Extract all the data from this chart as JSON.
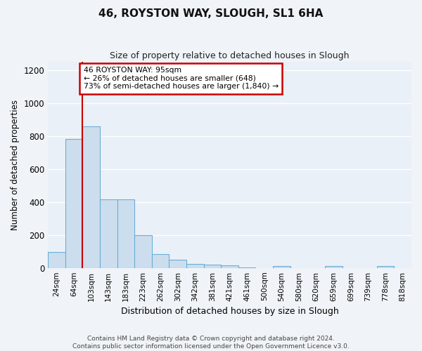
{
  "title": "46, ROYSTON WAY, SLOUGH, SL1 6HA",
  "subtitle": "Size of property relative to detached houses in Slough",
  "xlabel": "Distribution of detached houses by size in Slough",
  "ylabel": "Number of detached properties",
  "bar_labels": [
    "24sqm",
    "64sqm",
    "103sqm",
    "143sqm",
    "183sqm",
    "223sqm",
    "262sqm",
    "302sqm",
    "342sqm",
    "381sqm",
    "421sqm",
    "461sqm",
    "500sqm",
    "540sqm",
    "580sqm",
    "620sqm",
    "659sqm",
    "699sqm",
    "739sqm",
    "778sqm",
    "818sqm"
  ],
  "bar_values": [
    95,
    780,
    860,
    415,
    415,
    200,
    85,
    50,
    25,
    20,
    15,
    2,
    0,
    12,
    0,
    0,
    12,
    0,
    0,
    12,
    0
  ],
  "bar_color": "#ccdeed",
  "bar_edge_color": "#6baed6",
  "annotation_text": "46 ROYSTON WAY: 95sqm\n← 26% of detached houses are smaller (648)\n73% of semi-detached houses are larger (1,840) →",
  "annotation_box_color": "#ffffff",
  "annotation_box_edge": "#cc0000",
  "line_color": "#cc0000",
  "ylim": [
    0,
    1250
  ],
  "yticks": [
    0,
    200,
    400,
    600,
    800,
    1000,
    1200
  ],
  "background_color": "#eaf0f8",
  "grid_color": "#ffffff",
  "footer": "Contains HM Land Registry data © Crown copyright and database right 2024.\nContains public sector information licensed under the Open Government Licence v3.0."
}
